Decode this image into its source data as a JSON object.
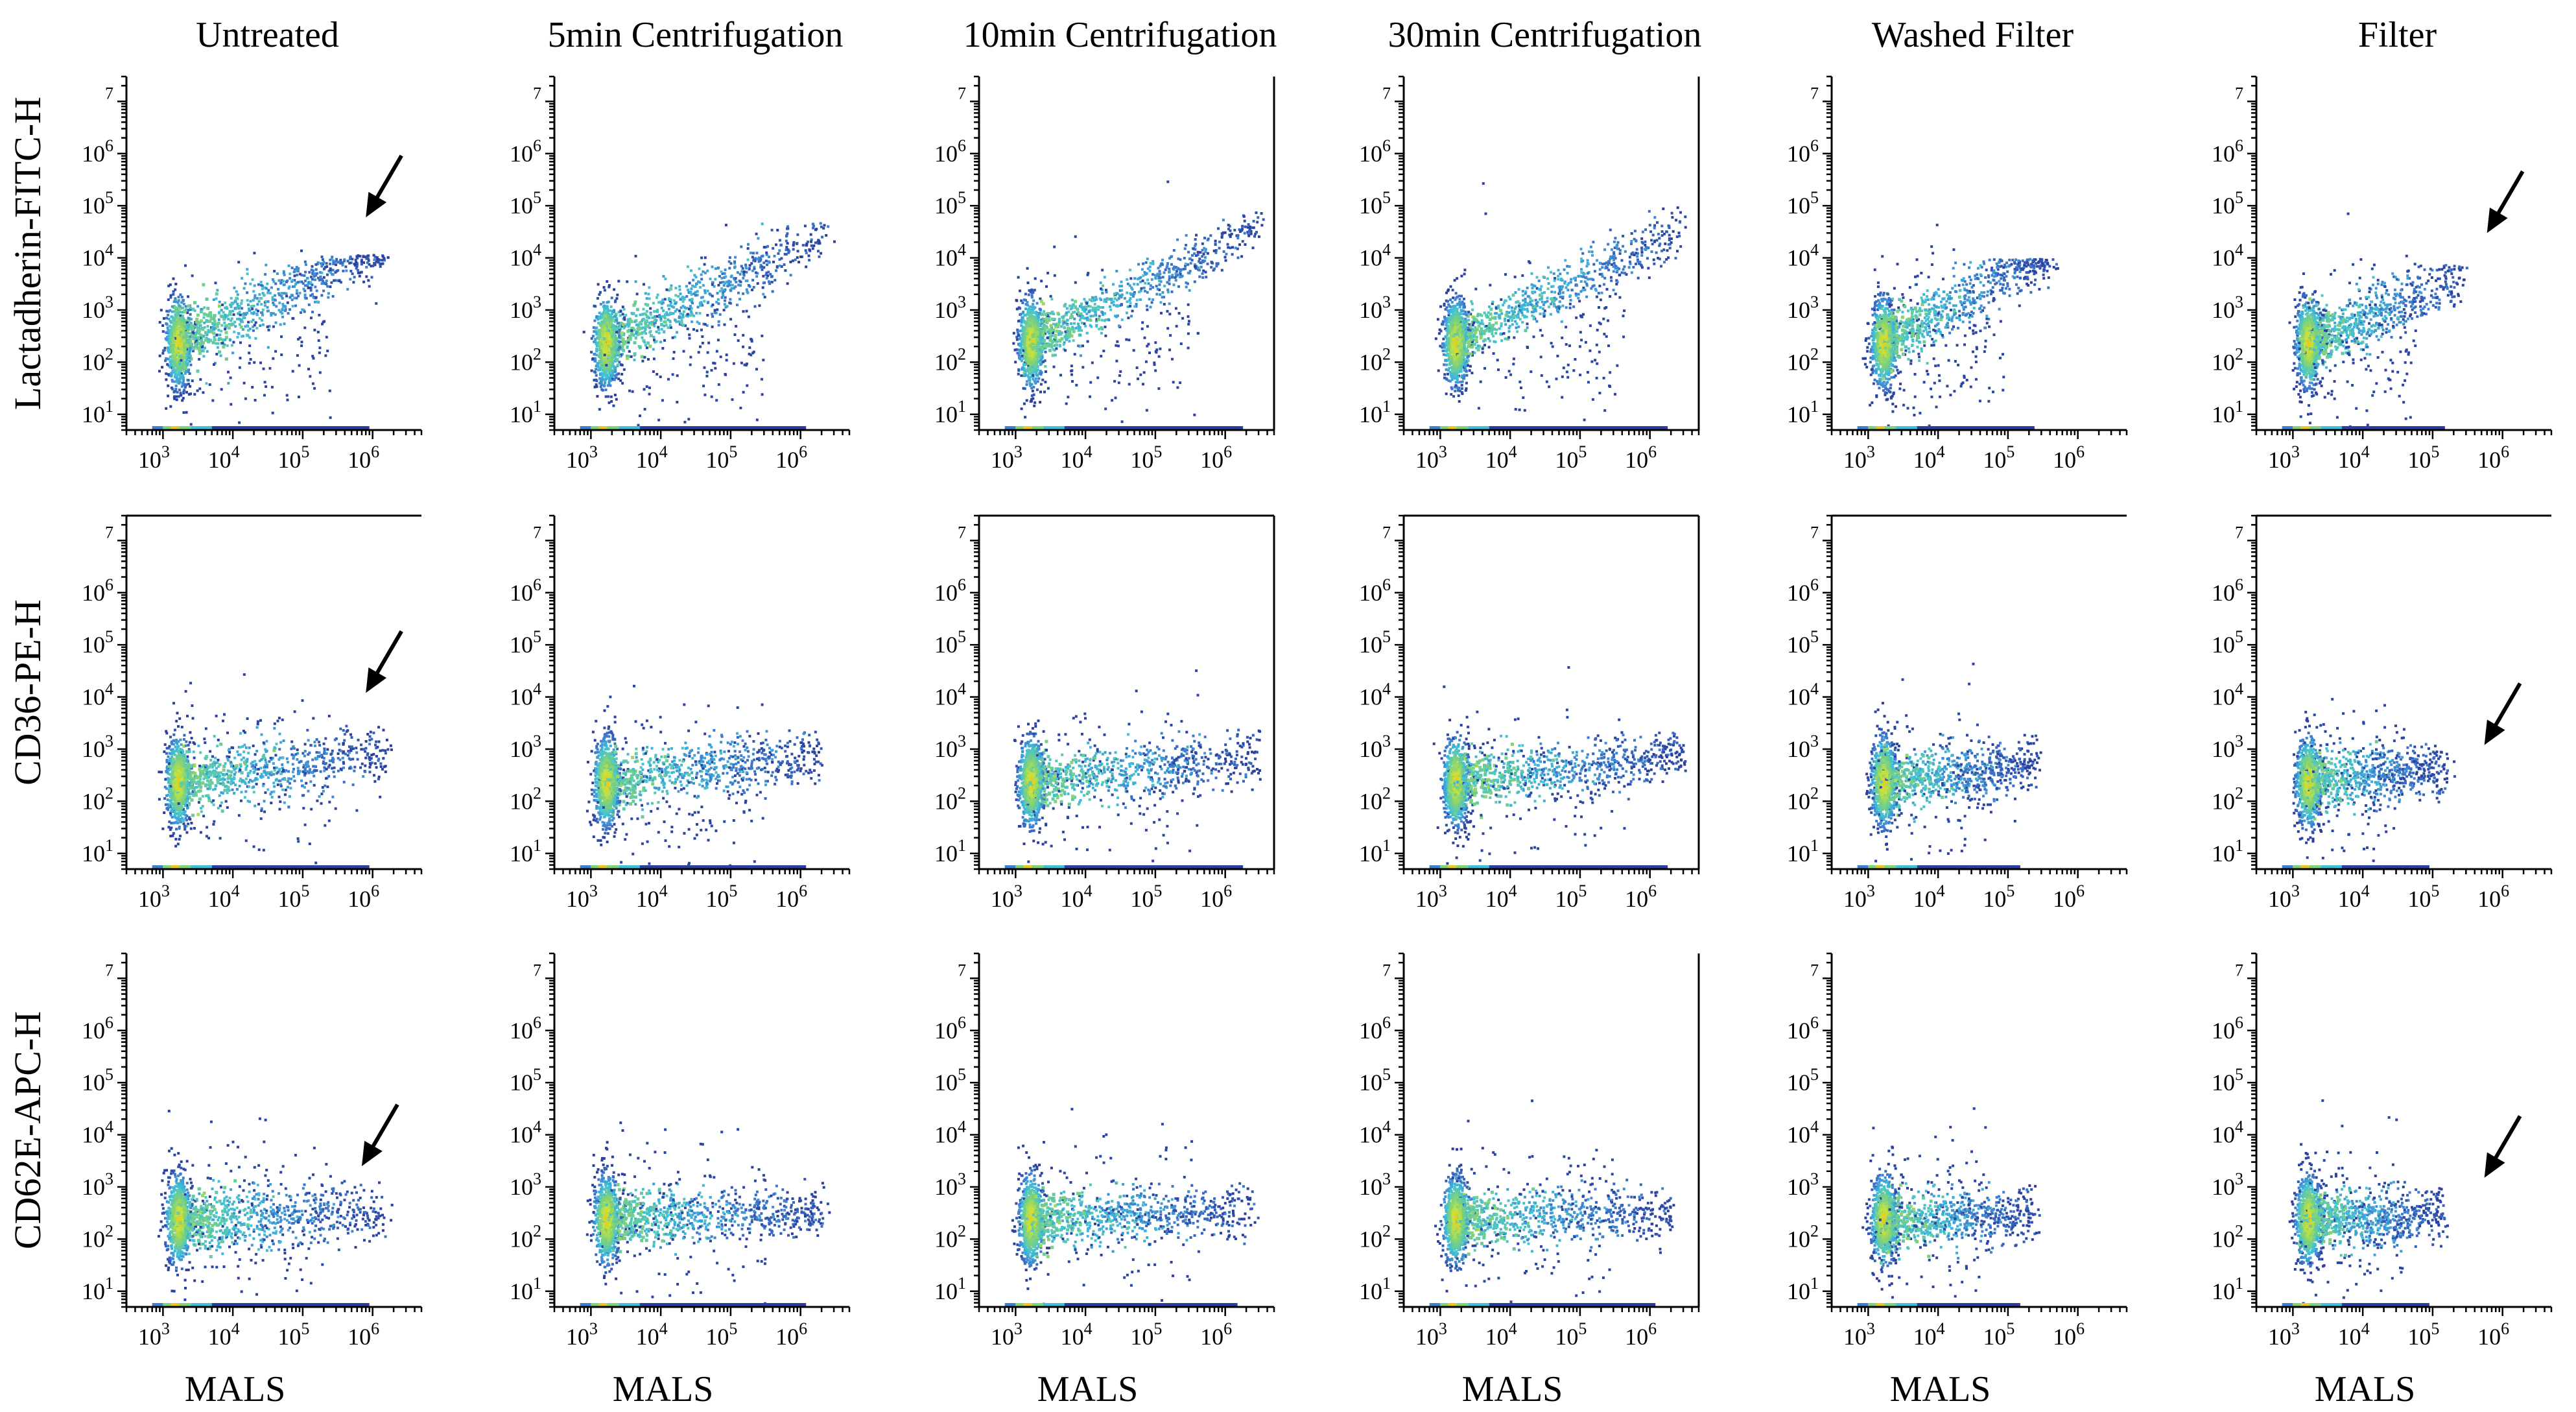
{
  "chart_data": {
    "type": "scatter",
    "subtype": "flow-cytometry density plots (pseudocolor)",
    "x_scale": "log",
    "y_scale": "log",
    "columns": [
      "Untreated",
      "5min Centrifugation",
      "10min Centrifugation",
      "30min Centrifugation",
      "Washed Filter",
      "Filter"
    ],
    "rows": [
      "Lactadherin-FITC-H",
      "CD36-PE-H",
      "CD62E-APC-H"
    ],
    "xlabel": "MALS",
    "x_ticks": [
      {
        "base": "10",
        "exp": "3",
        "value": 1000
      },
      {
        "base": "10",
        "exp": "4",
        "value": 10000
      },
      {
        "base": "10",
        "exp": "5",
        "value": 100000
      },
      {
        "base": "10",
        "exp": "6",
        "value": 1000000
      }
    ],
    "y_ticks": [
      {
        "base": "10",
        "exp": "1",
        "value": 10
      },
      {
        "base": "10",
        "exp": "2",
        "value": 100
      },
      {
        "base": "10",
        "exp": "3",
        "value": 1000
      },
      {
        "base": "10",
        "exp": "4",
        "value": 10000
      },
      {
        "base": "10",
        "exp": "5",
        "value": 100000
      },
      {
        "base": "10",
        "exp": "6",
        "value": 1000000
      },
      {
        "base": "",
        "exp": "7",
        "value": 10000000
      }
    ],
    "xlim": [
      300,
      5000000
    ],
    "ylim": [
      5,
      30000000
    ],
    "colormap": [
      "#2a3f9e",
      "#3f7fd0",
      "#3fc0d8",
      "#7fd27a",
      "#c8e23c",
      "#e8c81e"
    ],
    "population": {
      "center_x": 1600,
      "center_y": 250,
      "description": "dense core of events near 10^3 MALS"
    },
    "panels": [
      {
        "row": 0,
        "col": 0,
        "max_x": 1500000,
        "max_y": 12000,
        "slope": 0.62,
        "spread": 0.3,
        "arrow": true,
        "arrow_target": [
          800000,
          60000
        ],
        "box": "none"
      },
      {
        "row": 0,
        "col": 1,
        "max_x": 2000000,
        "max_y": 50000,
        "slope": 0.66,
        "spread": 0.25,
        "arrow": false,
        "box": "none"
      },
      {
        "row": 0,
        "col": 2,
        "max_x": 3000000,
        "max_y": 80000,
        "slope": 0.68,
        "spread": 0.22,
        "arrow": false,
        "box": "right"
      },
      {
        "row": 0,
        "col": 3,
        "max_x": 3000000,
        "max_y": 120000,
        "slope": 0.68,
        "spread": 0.22,
        "arrow": false,
        "box": "right"
      },
      {
        "row": 0,
        "col": 4,
        "max_x": 400000,
        "max_y": 10000,
        "slope": 0.75,
        "spread": 0.28,
        "arrow": false,
        "box": "none"
      },
      {
        "row": 0,
        "col": 5,
        "max_x": 250000,
        "max_y": 8000,
        "slope": 0.55,
        "spread": 0.28,
        "arrow": true,
        "arrow_target": [
          600000,
          30000
        ],
        "box": "none"
      },
      {
        "row": 1,
        "col": 0,
        "max_x": 1500000,
        "max_y": 3000,
        "slope": 0.18,
        "spread": 0.28,
        "arrow": true,
        "arrow_target": [
          800000,
          12000
        ],
        "box": "top"
      },
      {
        "row": 1,
        "col": 1,
        "max_x": 2000000,
        "max_y": 2500,
        "slope": 0.18,
        "spread": 0.25,
        "arrow": false,
        "box": "none"
      },
      {
        "row": 1,
        "col": 2,
        "max_x": 3000000,
        "max_y": 2500,
        "slope": 0.15,
        "spread": 0.25,
        "arrow": false,
        "box": "full"
      },
      {
        "row": 1,
        "col": 3,
        "max_x": 3000000,
        "max_y": 2500,
        "slope": 0.15,
        "spread": 0.25,
        "arrow": false,
        "box": "full"
      },
      {
        "row": 1,
        "col": 4,
        "max_x": 250000,
        "max_y": 2000,
        "slope": 0.15,
        "spread": 0.25,
        "arrow": false,
        "box": "top"
      },
      {
        "row": 1,
        "col": 5,
        "max_x": 150000,
        "max_y": 1500,
        "slope": 0.12,
        "spread": 0.25,
        "arrow": true,
        "arrow_target": [
          550000,
          1200
        ],
        "box": "top"
      },
      {
        "row": 2,
        "col": 0,
        "max_x": 1500000,
        "max_y": 1500,
        "slope": 0.05,
        "spread": 0.27,
        "arrow": true,
        "arrow_target": [
          700000,
          2500
        ],
        "box": "none"
      },
      {
        "row": 2,
        "col": 1,
        "max_x": 2000000,
        "max_y": 1500,
        "slope": 0.05,
        "spread": 0.25,
        "arrow": false,
        "box": "none"
      },
      {
        "row": 2,
        "col": 2,
        "max_x": 2500000,
        "max_y": 1500,
        "slope": 0.05,
        "spread": 0.25,
        "arrow": false,
        "box": "none"
      },
      {
        "row": 2,
        "col": 3,
        "max_x": 2000000,
        "max_y": 1500,
        "slope": 0.05,
        "spread": 0.25,
        "arrow": false,
        "box": "right"
      },
      {
        "row": 2,
        "col": 4,
        "max_x": 250000,
        "max_y": 1500,
        "slope": 0.05,
        "spread": 0.25,
        "arrow": false,
        "box": "none"
      },
      {
        "row": 2,
        "col": 5,
        "max_x": 150000,
        "max_y": 1500,
        "slope": 0.04,
        "spread": 0.25,
        "arrow": true,
        "arrow_target": [
          550000,
          1500
        ],
        "box": "none"
      }
    ]
  }
}
